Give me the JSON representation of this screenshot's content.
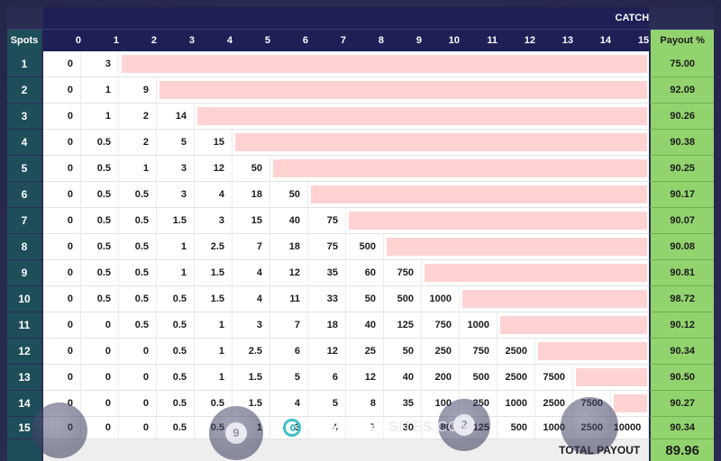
{
  "table": {
    "catch_title": "CATCH",
    "spots_header": "Spots",
    "payout_header": "Payout %",
    "catch_columns": [
      "0",
      "1",
      "2",
      "3",
      "4",
      "5",
      "6",
      "7",
      "8",
      "9",
      "10",
      "11",
      "12",
      "13",
      "14",
      "15"
    ],
    "rows": [
      {
        "spots": "1",
        "payouts": [
          "0",
          "3"
        ],
        "payout_pct": "75.00"
      },
      {
        "spots": "2",
        "payouts": [
          "0",
          "1",
          "9"
        ],
        "payout_pct": "92.09"
      },
      {
        "spots": "3",
        "payouts": [
          "0",
          "1",
          "2",
          "14"
        ],
        "payout_pct": "90.26"
      },
      {
        "spots": "4",
        "payouts": [
          "0",
          "0.5",
          "2",
          "5",
          "15"
        ],
        "payout_pct": "90.38"
      },
      {
        "spots": "5",
        "payouts": [
          "0",
          "0.5",
          "1",
          "3",
          "12",
          "50"
        ],
        "payout_pct": "90.25"
      },
      {
        "spots": "6",
        "payouts": [
          "0",
          "0.5",
          "0.5",
          "3",
          "4",
          "18",
          "50"
        ],
        "payout_pct": "90.17"
      },
      {
        "spots": "7",
        "payouts": [
          "0",
          "0.5",
          "0.5",
          "1.5",
          "3",
          "15",
          "40",
          "75"
        ],
        "payout_pct": "90.07"
      },
      {
        "spots": "8",
        "payouts": [
          "0",
          "0.5",
          "0.5",
          "1",
          "2.5",
          "7",
          "18",
          "75",
          "500"
        ],
        "payout_pct": "90.08"
      },
      {
        "spots": "9",
        "payouts": [
          "0",
          "0.5",
          "0.5",
          "1",
          "1.5",
          "4",
          "12",
          "35",
          "60",
          "750"
        ],
        "payout_pct": "90.81"
      },
      {
        "spots": "10",
        "payouts": [
          "0",
          "0.5",
          "0.5",
          "0.5",
          "1.5",
          "4",
          "11",
          "33",
          "50",
          "500",
          "1000"
        ],
        "payout_pct": "98.72"
      },
      {
        "spots": "11",
        "payouts": [
          "0",
          "0",
          "0.5",
          "0.5",
          "1",
          "3",
          "7",
          "18",
          "40",
          "125",
          "750",
          "1000"
        ],
        "payout_pct": "90.12"
      },
      {
        "spots": "12",
        "payouts": [
          "0",
          "0",
          "0",
          "0.5",
          "1",
          "2.5",
          "6",
          "12",
          "25",
          "50",
          "250",
          "750",
          "2500"
        ],
        "payout_pct": "90.34"
      },
      {
        "spots": "13",
        "payouts": [
          "0",
          "0",
          "0",
          "0.5",
          "1",
          "1.5",
          "5",
          "6",
          "12",
          "40",
          "200",
          "500",
          "2500",
          "7500"
        ],
        "payout_pct": "90.50"
      },
      {
        "spots": "14",
        "payouts": [
          "0",
          "0",
          "0",
          "0.5",
          "0.5",
          "1.5",
          "4",
          "5",
          "8",
          "35",
          "100",
          "250",
          "1000",
          "2500",
          "7500"
        ],
        "payout_pct": "90.27"
      },
      {
        "spots": "15",
        "payouts": [
          "0",
          "0",
          "0",
          "0.5",
          "0.5",
          "1",
          "3",
          "4",
          "7",
          "30",
          "80",
          "125",
          "500",
          "1000",
          "2500",
          "10000"
        ],
        "payout_pct": "90.34"
      }
    ],
    "total_label": "TOTAL PAYOUT",
    "total_value": "89.96"
  },
  "colors": {
    "header_navy": "#1d1f55",
    "spots_teal": "#1e4e5a",
    "payout_green": "#92d36e",
    "empty_pink": "#ffd3d3",
    "background": "#2b2c54"
  },
  "footer": {
    "ball_numbers": [
      "9",
      "2"
    ],
    "logo_bold": "GAMBLING",
    "logo_light": "SITES.COM",
    "logo_icon": "gambling-sites-logo-icon"
  }
}
